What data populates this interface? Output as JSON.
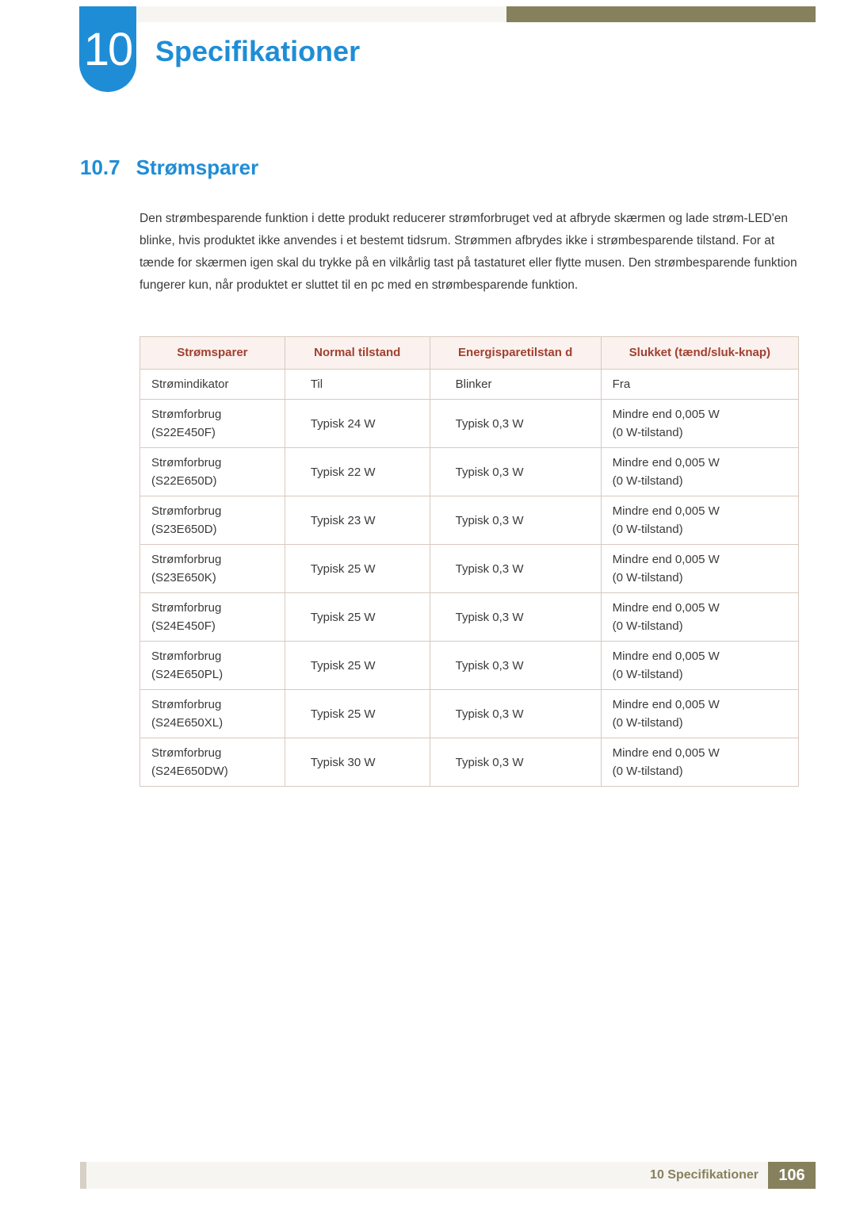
{
  "colors": {
    "accent_blue": "#1f8dd6",
    "header_khaki": "#86815c",
    "header_light": "#f7f5f2",
    "table_header_bg": "#fbf1ee",
    "table_header_text": "#a04030",
    "table_border": "#d8c9c0",
    "body_text": "#3a3a3a",
    "footer_spacer": "#d7d0c6"
  },
  "chapter": {
    "number": "10",
    "title": "Specifikationer"
  },
  "section": {
    "number": "10.7",
    "title": "Strømsparer"
  },
  "paragraph": "Den strømbesparende funktion i dette produkt reducerer strømforbruget ved at afbryde skærmen og lade strøm-LED'en blinke, hvis produktet ikke anvendes i et bestemt tidsrum. Strømmen afbrydes ikke i strømbesparende tilstand. For at tænde for skærmen igen skal du trykke på en vilkårlig tast på tastaturet eller flytte musen. Den strømbesparende funktion fungerer kun, når produktet er sluttet til en pc med en strømbesparende funktion.",
  "table": {
    "type": "table",
    "columns": [
      {
        "label_line1": "Strømsparer",
        "label_line2": ""
      },
      {
        "label_line1": "Normal tilstand",
        "label_line2": ""
      },
      {
        "label_line1": "Energisparetilstan",
        "label_line2": "d"
      },
      {
        "label_line1": "Slukket",
        "label_line2": "(tænd/sluk-knap)"
      }
    ],
    "rows": [
      {
        "c1_l1": "Strømindikator",
        "c1_l2": "",
        "c2": "Til",
        "c3": "Blinker",
        "c4_l1": "Fra",
        "c4_l2": ""
      },
      {
        "c1_l1": "Strømforbrug",
        "c1_l2": "(S22E450F)",
        "c2": "Typisk 24 W",
        "c3": "Typisk 0,3 W",
        "c4_l1": "Mindre end 0,005 W",
        "c4_l2": "(0 W-tilstand)"
      },
      {
        "c1_l1": "Strømforbrug",
        "c1_l2": "(S22E650D)",
        "c2": "Typisk 22 W",
        "c3": "Typisk 0,3 W",
        "c4_l1": "Mindre end 0,005 W",
        "c4_l2": "(0 W-tilstand)"
      },
      {
        "c1_l1": "Strømforbrug",
        "c1_l2": "(S23E650D)",
        "c2": "Typisk 23 W",
        "c3": "Typisk 0,3 W",
        "c4_l1": "Mindre end 0,005 W",
        "c4_l2": "(0 W-tilstand)"
      },
      {
        "c1_l1": "Strømforbrug",
        "c1_l2": "(S23E650K)",
        "c2": "Typisk 25 W",
        "c3": "Typisk 0,3 W",
        "c4_l1": "Mindre end 0,005 W",
        "c4_l2": "(0 W-tilstand)"
      },
      {
        "c1_l1": "Strømforbrug",
        "c1_l2": "(S24E450F)",
        "c2": "Typisk 25 W",
        "c3": "Typisk 0,3 W",
        "c4_l1": "Mindre end 0,005 W",
        "c4_l2": "(0 W-tilstand)"
      },
      {
        "c1_l1": "Strømforbrug",
        "c1_l2": "(S24E650PL)",
        "c2": "Typisk 25 W",
        "c3": "Typisk 0,3 W",
        "c4_l1": "Mindre end 0,005 W",
        "c4_l2": "(0 W-tilstand)"
      },
      {
        "c1_l1": "Strømforbrug",
        "c1_l2": "(S24E650XL)",
        "c2": "Typisk 25 W",
        "c3": "Typisk 0,3 W",
        "c4_l1": "Mindre end 0,005 W",
        "c4_l2": "(0 W-tilstand)"
      },
      {
        "c1_l1": "Strømforbrug",
        "c1_l2": "(S24E650DW)",
        "c2": "Typisk 30 W",
        "c3": "Typisk 0,3 W",
        "c4_l1": "Mindre end 0,005 W",
        "c4_l2": "(0 W-tilstand)"
      }
    ]
  },
  "footer": {
    "label": "10 Specifikationer",
    "page": "106"
  }
}
